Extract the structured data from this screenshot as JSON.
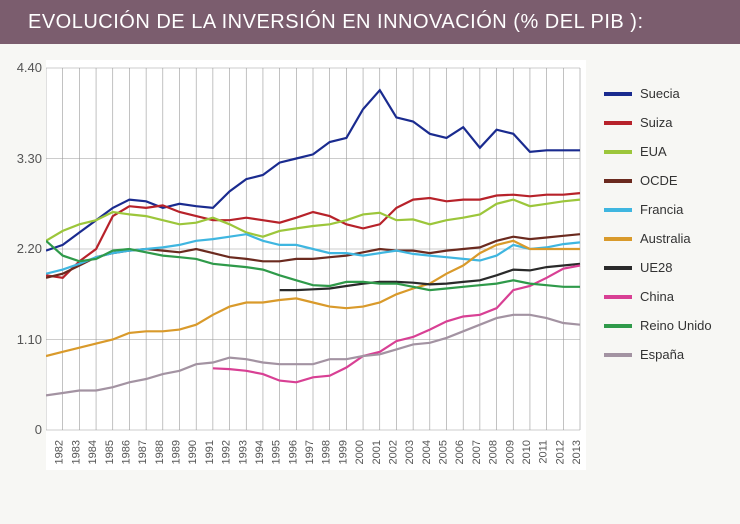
{
  "title": "EVOLUCIÓN DE LA INVERSIÓN EN INNOVACIÓN (% DEL PIB ):",
  "chart": {
    "type": "line",
    "background_color": "#ffffff",
    "page_background": "#f7f7f4",
    "title_bar_color": "#7b5d6e",
    "title_color": "#ffffff",
    "title_fontsize": 20,
    "grid_color": "#999999",
    "axis_label_color": "#555555",
    "axis_fontsize": 13,
    "xlabel_fontsize": 11,
    "legend_fontsize": 13,
    "line_width": 2.2,
    "years": [
      1981,
      1982,
      1983,
      1984,
      1985,
      1986,
      1987,
      1988,
      1989,
      1990,
      1991,
      1992,
      1993,
      1994,
      1995,
      1996,
      1997,
      1998,
      1999,
      2000,
      2001,
      2002,
      2003,
      2004,
      2005,
      2006,
      2007,
      2008,
      2009,
      2010,
      2011,
      2012,
      2013
    ],
    "ylim": [
      0,
      4.4
    ],
    "yticks": [
      0,
      1.1,
      2.2,
      3.3,
      4.4
    ],
    "ytick_labels": [
      "0",
      "1.10",
      "2.20",
      "3.30",
      "4.40"
    ],
    "series": [
      {
        "name": "Suecia",
        "color": "#1a2b8f",
        "start": 1981,
        "values": [
          2.18,
          2.25,
          2.4,
          2.55,
          2.7,
          2.8,
          2.78,
          2.7,
          2.75,
          2.72,
          2.7,
          2.9,
          3.05,
          3.1,
          3.25,
          3.3,
          3.35,
          3.5,
          3.55,
          3.9,
          4.13,
          3.8,
          3.75,
          3.6,
          3.55,
          3.68,
          3.43,
          3.65,
          3.6,
          3.38,
          3.4,
          3.4,
          3.4
        ]
      },
      {
        "name": "Suiza",
        "color": "#b7222a",
        "start": 1981,
        "values": [
          1.88,
          1.85,
          2.05,
          2.2,
          2.6,
          2.72,
          2.7,
          2.73,
          2.65,
          2.6,
          2.55,
          2.55,
          2.58,
          2.55,
          2.52,
          2.58,
          2.65,
          2.6,
          2.5,
          2.45,
          2.5,
          2.7,
          2.8,
          2.82,
          2.78,
          2.8,
          2.8,
          2.85,
          2.86,
          2.84,
          2.86,
          2.86,
          2.88
        ]
      },
      {
        "name": "EUA",
        "color": "#9cc63b",
        "start": 1981,
        "values": [
          2.3,
          2.42,
          2.5,
          2.55,
          2.65,
          2.62,
          2.6,
          2.55,
          2.5,
          2.52,
          2.58,
          2.5,
          2.4,
          2.35,
          2.42,
          2.45,
          2.48,
          2.5,
          2.55,
          2.62,
          2.64,
          2.55,
          2.56,
          2.5,
          2.55,
          2.58,
          2.62,
          2.75,
          2.8,
          2.72,
          2.75,
          2.78,
          2.8
        ]
      },
      {
        "name": "OCDE",
        "color": "#6b2a1f",
        "start": 1981,
        "values": [
          1.85,
          1.9,
          2.0,
          2.1,
          2.15,
          2.18,
          2.2,
          2.18,
          2.16,
          2.2,
          2.15,
          2.1,
          2.08,
          2.05,
          2.05,
          2.08,
          2.08,
          2.1,
          2.12,
          2.16,
          2.2,
          2.18,
          2.18,
          2.15,
          2.18,
          2.2,
          2.22,
          2.3,
          2.35,
          2.32,
          2.34,
          2.36,
          2.38
        ]
      },
      {
        "name": "Francia",
        "color": "#3fb6e0",
        "start": 1981,
        "values": [
          1.9,
          1.95,
          2.02,
          2.1,
          2.15,
          2.18,
          2.2,
          2.22,
          2.25,
          2.3,
          2.32,
          2.35,
          2.38,
          2.3,
          2.25,
          2.25,
          2.2,
          2.15,
          2.15,
          2.12,
          2.15,
          2.18,
          2.14,
          2.12,
          2.1,
          2.08,
          2.06,
          2.12,
          2.25,
          2.2,
          2.22,
          2.26,
          2.28
        ]
      },
      {
        "name": "Australia",
        "color": "#d99a2b",
        "start": 1981,
        "values": [
          0.9,
          0.95,
          1.0,
          1.05,
          1.1,
          1.18,
          1.2,
          1.2,
          1.22,
          1.28,
          1.4,
          1.5,
          1.55,
          1.55,
          1.58,
          1.6,
          1.55,
          1.5,
          1.48,
          1.5,
          1.55,
          1.65,
          1.72,
          1.78,
          1.9,
          2.0,
          2.15,
          2.25,
          2.3,
          2.2,
          2.2,
          2.2,
          2.2
        ]
      },
      {
        "name": "UE28",
        "color": "#2a2a2a",
        "start": 1995,
        "values": [
          1.7,
          1.7,
          1.71,
          1.72,
          1.75,
          1.78,
          1.8,
          1.8,
          1.79,
          1.77,
          1.78,
          1.8,
          1.82,
          1.88,
          1.95,
          1.94,
          1.98,
          2.0,
          2.02
        ]
      },
      {
        "name": "China",
        "color": "#d84094",
        "start": 1991,
        "values": [
          0.75,
          0.74,
          0.72,
          0.68,
          0.6,
          0.58,
          0.64,
          0.66,
          0.76,
          0.9,
          0.95,
          1.08,
          1.13,
          1.22,
          1.32,
          1.38,
          1.4,
          1.48,
          1.7,
          1.75,
          1.85,
          1.96,
          2.0
        ]
      },
      {
        "name": "Reino Unido",
        "color": "#2f9a4a",
        "start": 1981,
        "values": [
          2.3,
          2.12,
          2.05,
          2.08,
          2.18,
          2.2,
          2.16,
          2.12,
          2.1,
          2.08,
          2.02,
          2.0,
          1.98,
          1.95,
          1.88,
          1.82,
          1.76,
          1.75,
          1.8,
          1.8,
          1.78,
          1.78,
          1.74,
          1.7,
          1.72,
          1.74,
          1.76,
          1.78,
          1.82,
          1.78,
          1.76,
          1.74,
          1.74
        ]
      },
      {
        "name": "España",
        "color": "#a393a2",
        "start": 1981,
        "values": [
          0.42,
          0.45,
          0.48,
          0.48,
          0.52,
          0.58,
          0.62,
          0.68,
          0.72,
          0.8,
          0.82,
          0.88,
          0.86,
          0.82,
          0.8,
          0.8,
          0.8,
          0.86,
          0.86,
          0.9,
          0.92,
          0.98,
          1.04,
          1.06,
          1.12,
          1.2,
          1.28,
          1.36,
          1.4,
          1.4,
          1.36,
          1.3,
          1.28
        ]
      }
    ]
  }
}
